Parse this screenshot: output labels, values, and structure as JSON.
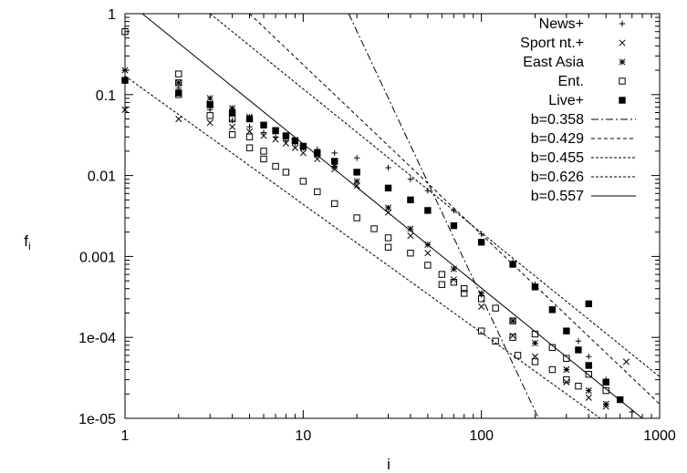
{
  "chart_data": {
    "type": "scatter",
    "xscale": "log",
    "yscale": "log",
    "xlim": [
      1,
      1000
    ],
    "ylim": [
      1e-05,
      1
    ],
    "xlabel": "i",
    "ylabel": "f_i",
    "ylabel_main": "f",
    "ylabel_sub": "i",
    "grid": false,
    "legend_position": "top-right",
    "x_ticks": [
      "1",
      "10",
      "100",
      "1000"
    ],
    "y_ticks": [
      "1",
      "0.1",
      "0.01",
      "0.001",
      "1e-04",
      "1e-05"
    ],
    "series": [
      {
        "name": "News+",
        "marker": "plus",
        "points": [
          [
            1,
            0.2
          ],
          [
            2,
            0.12
          ],
          [
            3,
            0.065
          ],
          [
            4,
            0.048
          ],
          [
            5,
            0.04
          ],
          [
            6,
            0.034
          ],
          [
            7,
            0.03
          ],
          [
            8,
            0.027
          ],
          [
            9,
            0.025
          ],
          [
            10,
            0.023
          ],
          [
            12,
            0.021
          ],
          [
            15,
            0.019
          ],
          [
            20,
            0.0165
          ],
          [
            30,
            0.0125
          ],
          [
            40,
            0.009
          ],
          [
            50,
            0.0065
          ],
          [
            70,
            0.0037
          ],
          [
            100,
            0.0019
          ],
          [
            150,
            0.00085
          ],
          [
            200,
            0.00045
          ],
          [
            250,
            0.00022
          ],
          [
            300,
            0.00012
          ],
          [
            350,
            9e-05
          ],
          [
            400,
            5.8e-05
          ],
          [
            500,
            3e-05
          ],
          [
            600,
            1.7e-05
          ],
          [
            700,
            1.2e-05
          ]
        ]
      },
      {
        "name": "Sport  nt.+",
        "marker": "cross",
        "points": [
          [
            1,
            0.065
          ],
          [
            2,
            0.05
          ],
          [
            3,
            0.045
          ],
          [
            4,
            0.04
          ],
          [
            5,
            0.035
          ],
          [
            6,
            0.031
          ],
          [
            7,
            0.028
          ],
          [
            8,
            0.025
          ],
          [
            9,
            0.022
          ],
          [
            10,
            0.019
          ],
          [
            12,
            0.016
          ],
          [
            15,
            0.012
          ],
          [
            20,
            0.0075
          ],
          [
            30,
            0.0035
          ],
          [
            40,
            0.0018
          ],
          [
            50,
            0.0011
          ],
          [
            70,
            0.00052
          ],
          [
            100,
            0.00024
          ],
          [
            150,
            0.000105
          ],
          [
            200,
            5.8e-05
          ],
          [
            300,
            2.8e-05
          ],
          [
            400,
            1.8e-05
          ],
          [
            500,
            1.4e-05
          ],
          [
            650,
            5e-05
          ]
        ]
      },
      {
        "name": "East Asia",
        "marker": "star",
        "points": [
          [
            1,
            0.2
          ],
          [
            2,
            0.14
          ],
          [
            3,
            0.09
          ],
          [
            4,
            0.068
          ],
          [
            5,
            0.053
          ],
          [
            6,
            0.042
          ],
          [
            7,
            0.035
          ],
          [
            8,
            0.03
          ],
          [
            9,
            0.026
          ],
          [
            10,
            0.022
          ],
          [
            12,
            0.018
          ],
          [
            15,
            0.013
          ],
          [
            20,
            0.0085
          ],
          [
            30,
            0.004
          ],
          [
            40,
            0.0022
          ],
          [
            50,
            0.0014
          ],
          [
            70,
            0.0007
          ],
          [
            100,
            0.00035
          ],
          [
            150,
            0.00016
          ],
          [
            200,
            8.5e-05
          ],
          [
            300,
            4e-05
          ],
          [
            400,
            2.2e-05
          ],
          [
            500,
            1.5e-05
          ]
        ]
      },
      {
        "name": "Ent.",
        "marker": "box",
        "points": [
          [
            1,
            0.6
          ],
          [
            2,
            0.18
          ],
          [
            2,
            0.1
          ],
          [
            3,
            0.055
          ],
          [
            4,
            0.032
          ],
          [
            5,
            0.022
          ],
          [
            6,
            0.016
          ],
          [
            7,
            0.013
          ],
          [
            8,
            0.011
          ],
          [
            10,
            0.0085
          ],
          [
            12,
            0.0063
          ],
          [
            15,
            0.0045
          ],
          [
            20,
            0.003
          ],
          [
            25,
            0.0022
          ],
          [
            30,
            0.0017
          ],
          [
            40,
            0.0011
          ],
          [
            50,
            0.00078
          ],
          [
            60,
            0.0006
          ],
          [
            70,
            0.00048
          ],
          [
            80,
            0.0004
          ],
          [
            100,
            0.0003
          ],
          [
            120,
            0.00023
          ],
          [
            150,
            0.00016
          ],
          [
            200,
            0.00011
          ],
          [
            250,
            7.5e-05
          ],
          [
            300,
            5.5e-05
          ],
          [
            400,
            3.5e-05
          ],
          [
            500,
            2.2e-05
          ],
          [
            2,
            0.14
          ],
          [
            3,
            0.075
          ],
          [
            4,
            0.05
          ],
          [
            5,
            0.03
          ],
          [
            6,
            0.02
          ],
          [
            30,
            0.0013
          ],
          [
            60,
            0.00045
          ],
          [
            80,
            0.00035
          ],
          [
            100,
            0.00012
          ],
          [
            120,
            9e-05
          ],
          [
            150,
            0.0001
          ],
          [
            160,
            6e-05
          ],
          [
            200,
            5e-05
          ],
          [
            250,
            4e-05
          ],
          [
            300,
            3e-05
          ],
          [
            350,
            2.5e-05
          ]
        ]
      },
      {
        "name": "Live+",
        "marker": "filled-box",
        "points": [
          [
            1,
            0.15
          ],
          [
            2,
            0.105
          ],
          [
            3,
            0.075
          ],
          [
            4,
            0.06
          ],
          [
            5,
            0.05
          ],
          [
            6,
            0.042
          ],
          [
            7,
            0.036
          ],
          [
            8,
            0.031
          ],
          [
            9,
            0.027
          ],
          [
            10,
            0.023
          ],
          [
            12,
            0.019
          ],
          [
            15,
            0.015
          ],
          [
            20,
            0.011
          ],
          [
            30,
            0.007
          ],
          [
            40,
            0.005
          ],
          [
            50,
            0.0037
          ],
          [
            70,
            0.0024
          ],
          [
            100,
            0.0015
          ],
          [
            150,
            0.0008
          ],
          [
            200,
            0.00042
          ],
          [
            250,
            0.00022
          ],
          [
            300,
            0.00012
          ],
          [
            350,
            7e-05
          ],
          [
            400,
            4.5e-05
          ],
          [
            500,
            2.8e-05
          ],
          [
            600,
            1.7e-05
          ],
          [
            400,
            0.00026
          ]
        ]
      }
    ],
    "lines": [
      {
        "name": "b=0.358",
        "style": "dashdot",
        "points": [
          [
            18,
            1
          ],
          [
            48,
            0.01
          ]
        ]
      },
      {
        "name": "b=0.429",
        "style": "dash-medium",
        "points": [
          [
            5,
            1
          ],
          [
            45,
            0.01
          ]
        ]
      },
      {
        "name": "b=0.455",
        "style": "dash-short",
        "points": [
          [
            3,
            1
          ],
          [
            40,
            0.01
          ]
        ]
      },
      {
        "name": "b=0.626",
        "style": "dash-fine",
        "points": [
          [
            1,
            0.17
          ],
          [
            300,
            2e-05
          ]
        ]
      },
      {
        "name": "b=0.557",
        "style": "solid",
        "points": [
          [
            1.25,
            1
          ],
          [
            800,
            1e-05
          ]
        ]
      }
    ]
  }
}
